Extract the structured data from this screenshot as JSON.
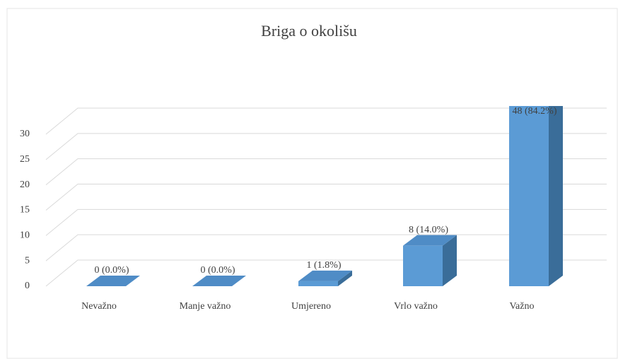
{
  "chart_data": {
    "type": "bar3d",
    "title": "Briga o okolišu",
    "categories": [
      "Nevažno",
      "Manje važno",
      "Umjereno",
      "Vrlo važno",
      "Važno"
    ],
    "values": [
      0,
      0,
      1,
      8,
      48
    ],
    "value_labels": [
      "0 (0.0%)",
      "0 (0.0%)",
      "1 (1.8%)",
      "8 (14.0%)",
      "48 (84.2%)"
    ],
    "color": "#5b9bd5",
    "ylim": [
      0,
      30
    ],
    "yticks": [
      0,
      5,
      10,
      15,
      20,
      25,
      30
    ],
    "grid": true
  }
}
